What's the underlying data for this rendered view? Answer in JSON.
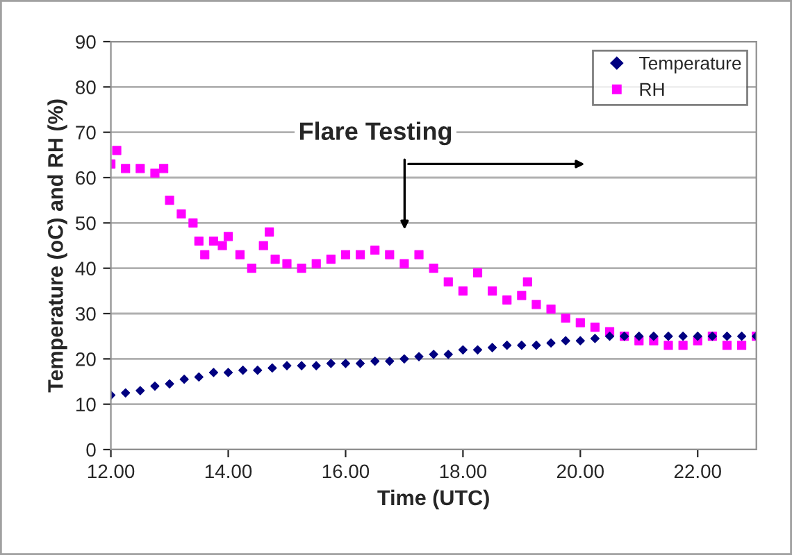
{
  "chart_data": {
    "type": "scatter",
    "xlabel": "Time (UTC)",
    "ylabel": "Temperature (oC) and RH (%)",
    "xlim": [
      12,
      23
    ],
    "xticks": [
      {
        "value": 12,
        "label": "12.00"
      },
      {
        "value": 14,
        "label": "14.00"
      },
      {
        "value": 16,
        "label": "16.00"
      },
      {
        "value": 18,
        "label": "18.00"
      },
      {
        "value": 20,
        "label": "20.00"
      },
      {
        "value": 22,
        "label": "22.00"
      }
    ],
    "ylim": [
      0,
      90
    ],
    "yticks": [
      0,
      10,
      20,
      30,
      40,
      50,
      60,
      70,
      80,
      90
    ],
    "grid": "y",
    "legend": "top right",
    "annotations": [
      "Flare Testing"
    ],
    "series": [
      {
        "name": "Temperature",
        "color": "#000080",
        "marker": "diamond",
        "x": [
          12,
          12.25,
          12.5,
          12.75,
          13,
          13.25,
          13.5,
          13.75,
          14,
          14.25,
          14.5,
          14.75,
          15,
          15.25,
          15.5,
          15.75,
          16,
          16.25,
          16.5,
          16.75,
          17,
          17.25,
          17.5,
          17.75,
          18,
          18.25,
          18.5,
          18.75,
          19,
          19.25,
          19.5,
          19.75,
          20,
          20.25,
          20.5,
          20.75,
          21,
          21.25,
          21.5,
          21.75,
          22,
          22.25,
          22.5,
          22.75,
          23
        ],
        "values": [
          12,
          12.5,
          13,
          14,
          14.5,
          15.5,
          16,
          17,
          17,
          17.5,
          17.5,
          18,
          18.5,
          18.5,
          18.5,
          19,
          19,
          19,
          19.5,
          19.5,
          20,
          20.5,
          21,
          21,
          22,
          22,
          22.5,
          23,
          23,
          23,
          23.5,
          24,
          24,
          24.5,
          25,
          25,
          25,
          25,
          25,
          25,
          25,
          25,
          25,
          25,
          25
        ]
      },
      {
        "name": "RH",
        "color": "#ff00ff",
        "marker": "square",
        "x": [
          12,
          12.1,
          12.25,
          12.5,
          12.75,
          12.9,
          13,
          13.2,
          13.4,
          13.5,
          13.6,
          13.75,
          13.9,
          14,
          14.2,
          14.4,
          14.6,
          14.7,
          14.8,
          15,
          15.25,
          15.5,
          15.75,
          16,
          16.25,
          16.5,
          16.75,
          17,
          17.25,
          17.5,
          17.75,
          18,
          18.25,
          18.5,
          18.75,
          19,
          19.1,
          19.25,
          19.5,
          19.75,
          20,
          20.25,
          20.5,
          20.75,
          21,
          21.25,
          21.5,
          21.75,
          22,
          22.25,
          22.5,
          22.75,
          23
        ],
        "values": [
          63,
          66,
          62,
          62,
          61,
          62,
          55,
          52,
          50,
          46,
          43,
          46,
          45,
          47,
          43,
          40,
          45,
          48,
          42,
          41,
          40,
          41,
          42,
          43,
          43,
          44,
          43,
          41,
          43,
          40,
          37,
          35,
          39,
          35,
          33,
          34,
          37,
          32,
          31,
          29,
          28,
          27,
          26,
          25,
          24,
          24,
          23,
          23,
          24,
          25,
          23,
          23,
          25
        ]
      }
    ]
  }
}
